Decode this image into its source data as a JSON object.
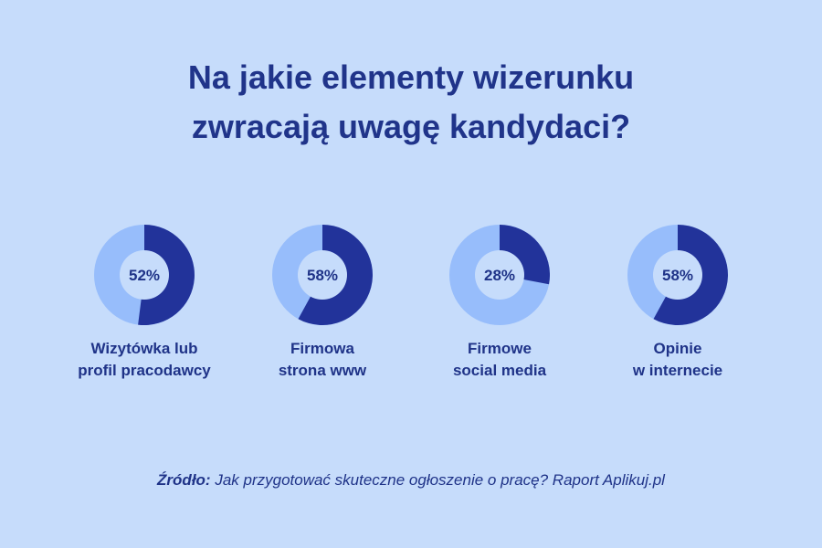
{
  "title_lines": [
    "Na jakie elementy wizerunku",
    "zwracają uwagę kandydaci?"
  ],
  "colors": {
    "background": "#c6dcfb",
    "filled": "#22339a",
    "remaining": "#97bdfb",
    "inner": "#c6dcfb",
    "text": "#1f3388"
  },
  "chart_data": {
    "type": "pie",
    "variant": "donut",
    "items": [
      {
        "value": 52,
        "value_label": "52%",
        "label_lines": [
          "Wizytówka lub",
          "profil pracodawcy"
        ]
      },
      {
        "value": 58,
        "value_label": "58%",
        "label_lines": [
          "Firmowa",
          "strona www"
        ]
      },
      {
        "value": 28,
        "value_label": "28%",
        "label_lines": [
          "Firmowe",
          "social media"
        ]
      },
      {
        "value": 58,
        "value_label": "58%",
        "label_lines": [
          "Opinie",
          "w internecie"
        ]
      }
    ]
  },
  "source": {
    "prefix": "Źródło:",
    "text": " Jak przygotować skuteczne ogłoszenie o pracę? Raport Aplikuj.pl"
  }
}
